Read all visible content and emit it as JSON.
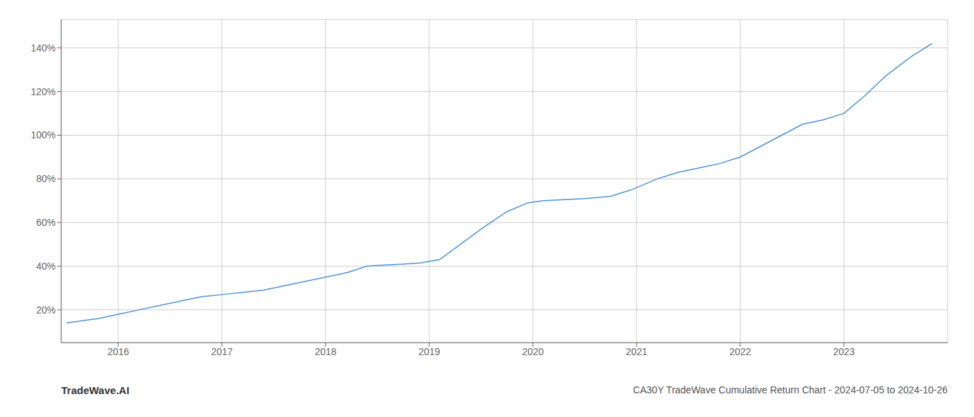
{
  "chart_data": {
    "type": "line",
    "title": "CA30Y TradeWave Cumulative Return Chart - 2024-07-05 to 2024-10-26",
    "annotations": [
      "TradeWave.AI"
    ],
    "x": [
      2015.5,
      2015.65,
      2015.8,
      2016.0,
      2016.2,
      2016.4,
      2016.6,
      2016.8,
      2017.0,
      2017.2,
      2017.4,
      2017.6,
      2017.8,
      2018.0,
      2018.2,
      2018.4,
      2018.55,
      2018.75,
      2018.92,
      2019.1,
      2019.3,
      2019.5,
      2019.75,
      2019.95,
      2020.1,
      2020.3,
      2020.5,
      2020.75,
      2020.95,
      2021.2,
      2021.4,
      2021.6,
      2021.8,
      2022.0,
      2022.2,
      2022.4,
      2022.6,
      2022.8,
      2023.0,
      2023.2,
      2023.4,
      2023.65,
      2023.85
    ],
    "values": [
      14,
      15,
      16,
      18,
      20,
      22,
      24,
      26,
      27,
      28,
      29,
      31,
      33,
      35,
      37,
      40,
      40.5,
      41,
      41.5,
      43,
      50,
      57,
      65,
      69,
      70,
      70.5,
      71,
      72,
      75,
      80,
      83,
      85,
      87,
      90,
      95,
      100,
      105,
      107,
      110,
      118,
      127,
      136,
      142
    ],
    "color": "#4a90d9",
    "xlim": [
      2015.45,
      2024.0
    ],
    "ylim": [
      5,
      153
    ],
    "xticks": [
      2016,
      2017,
      2018,
      2019,
      2020,
      2021,
      2022,
      2023
    ],
    "yticks": [
      {
        "value": 20,
        "label": "20%"
      },
      {
        "value": 40,
        "label": "40%"
      },
      {
        "value": 60,
        "label": "60%"
      },
      {
        "value": 80,
        "label": "80%"
      },
      {
        "value": 100,
        "label": "100%"
      },
      {
        "value": 120,
        "label": "120%"
      },
      {
        "value": 140,
        "label": "140%"
      }
    ],
    "grid": true
  }
}
